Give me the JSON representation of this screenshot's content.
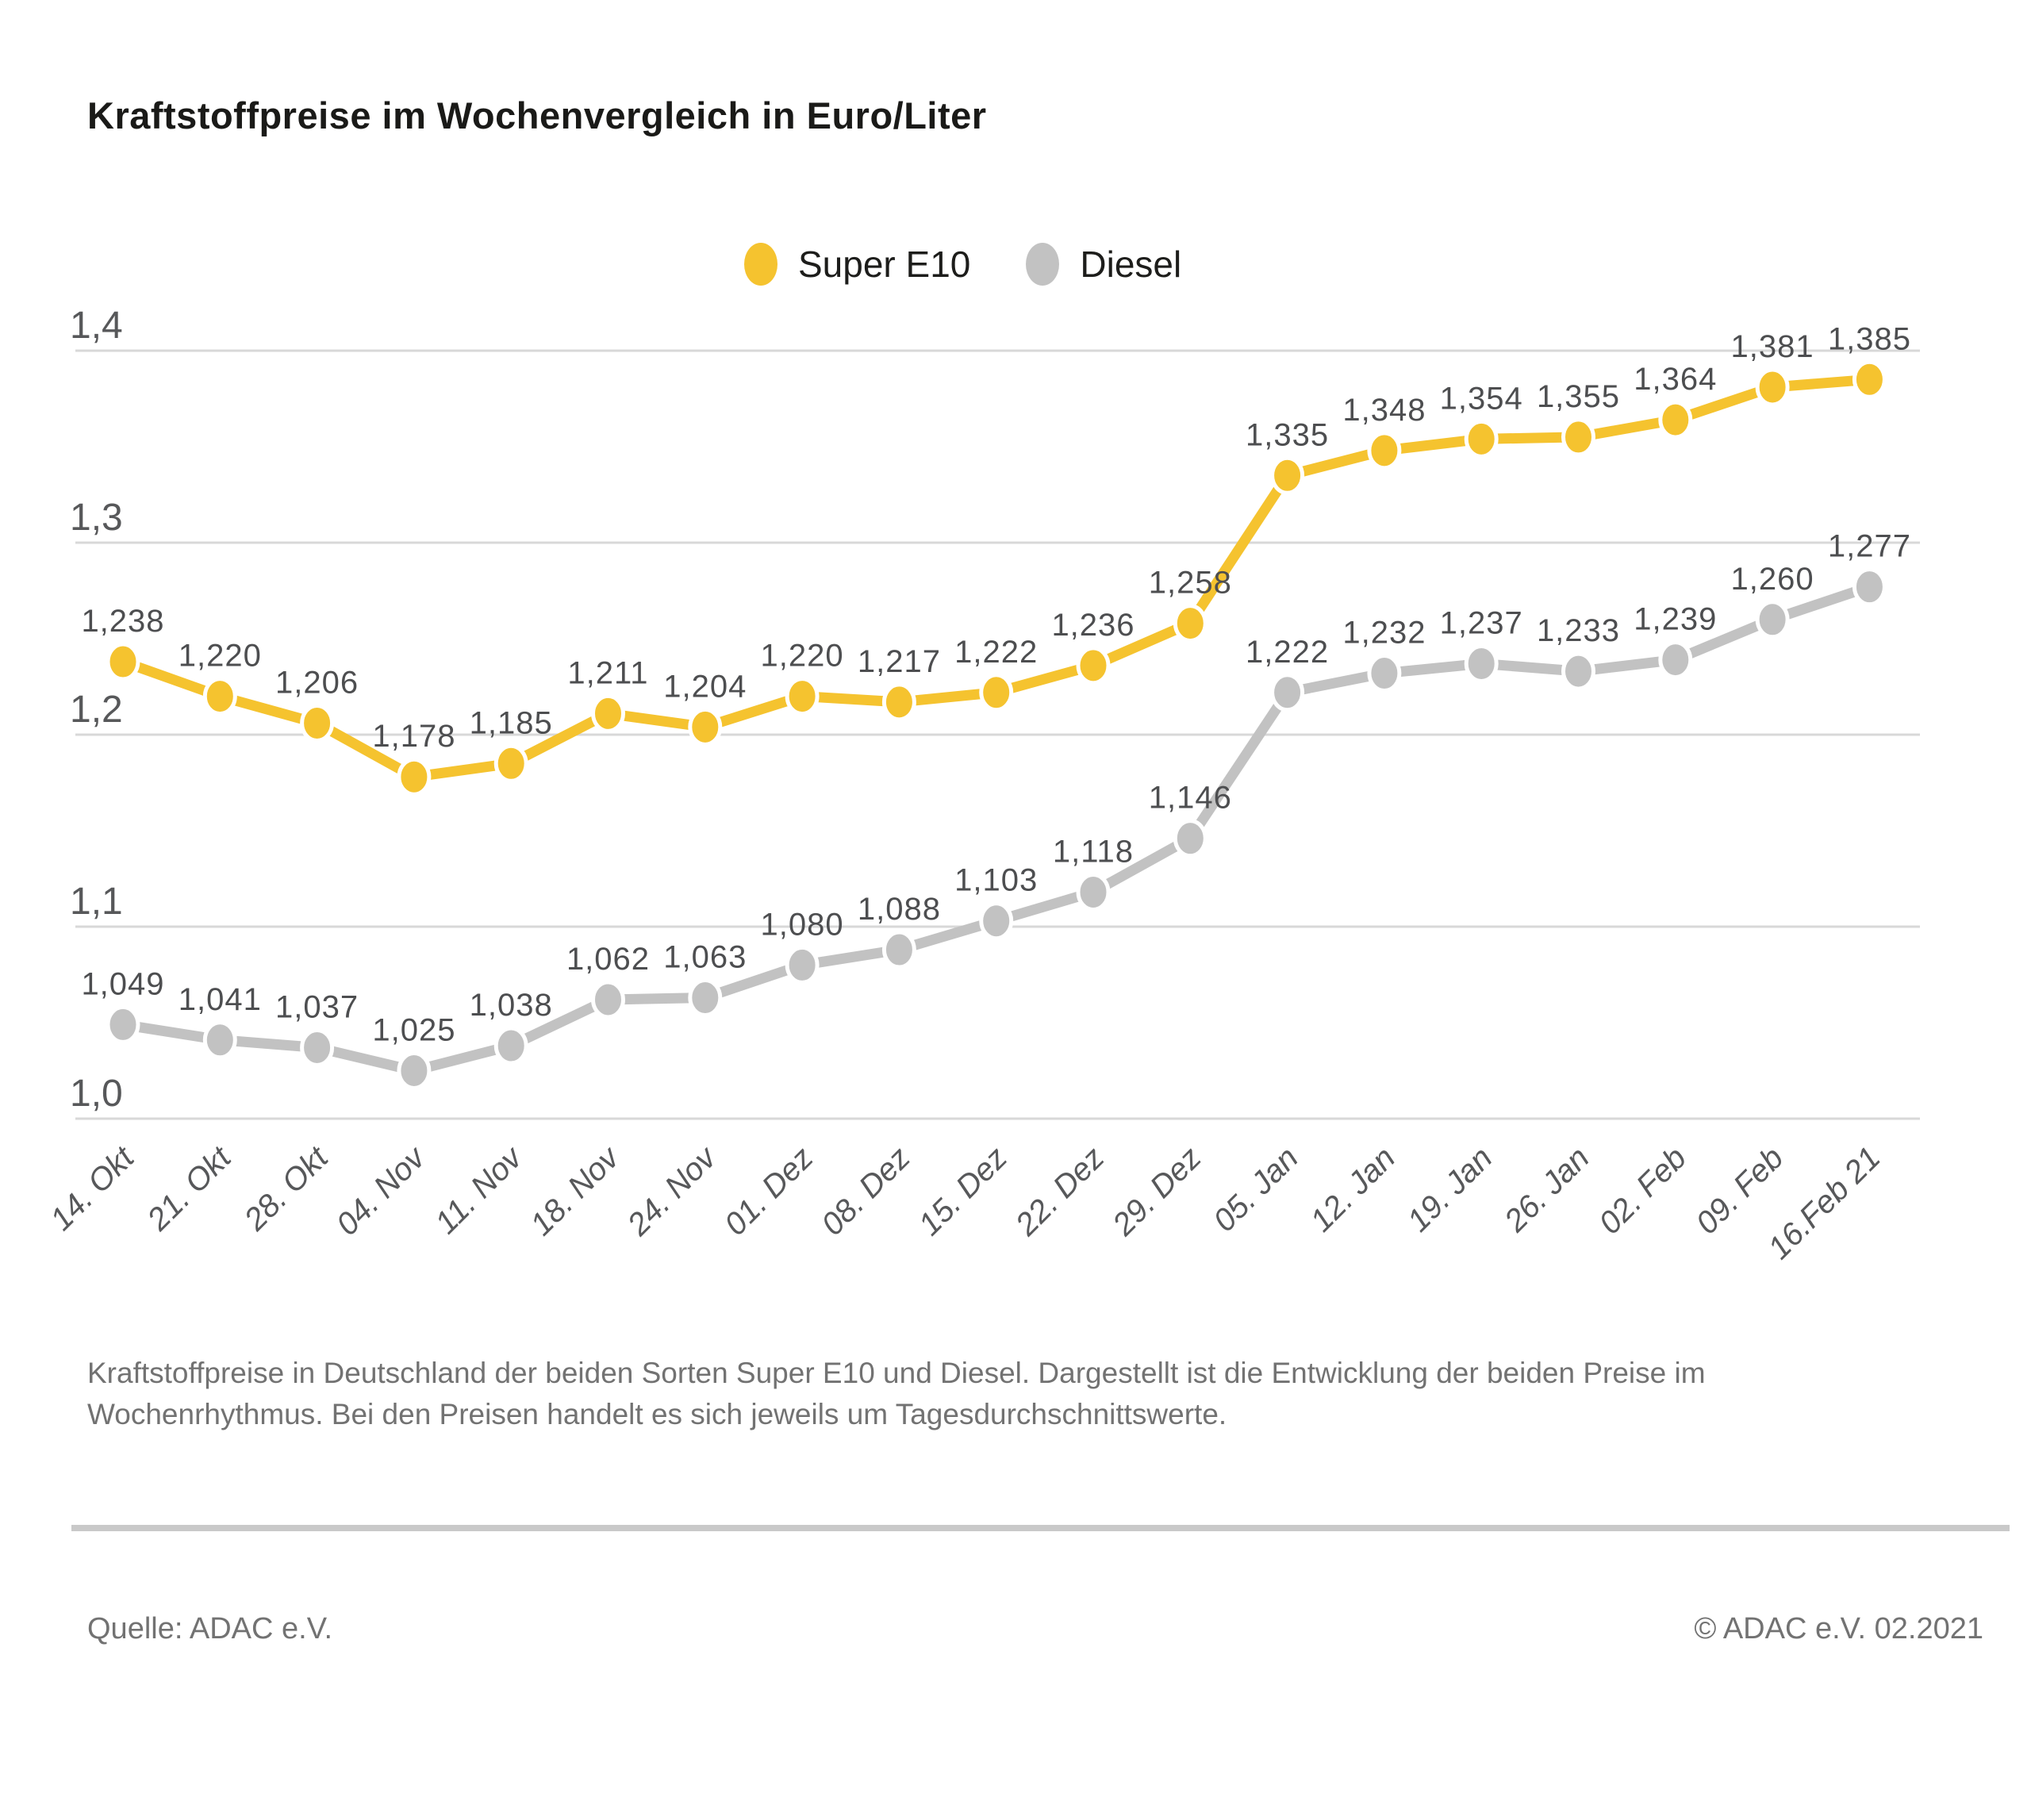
{
  "title": "Kraftstoffpreise im Wochenvergleich in Euro/Liter",
  "caption": {
    "line1": "Kraftstoffpreise in Deutschland der beiden Sorten Super E10 und Diesel. Dargestellt ist die Entwicklung der beiden Preise im",
    "line2": "Wochenrhythmus. Bei den Preisen handelt es sich jeweils um Tagesdurchschnittswerte."
  },
  "footer": {
    "source": "Quelle: ADAC e.V.",
    "copyright": "© ADAC e.V. 02.2021"
  },
  "chart_data": {
    "type": "line",
    "title": "Kraftstoffpreise im Wochenvergleich in Euro/Liter",
    "ylabel": "Euro/Liter",
    "xlabel": "",
    "categories": [
      "14. Okt",
      "21. Okt",
      "28. Okt",
      "04. Nov",
      "11. Nov",
      "18. Nov",
      "24. Nov",
      "01. Dez",
      "08. Dez",
      "15. Dez",
      "22. Dez",
      "29. Dez",
      "05. Jan",
      "12. Jan",
      "19. Jan",
      "26. Jan",
      "02. Feb",
      "09. Feb",
      "16.Feb 21"
    ],
    "series": [
      {
        "name": "Super E10",
        "color": "#f5c32f",
        "values": [
          1.238,
          1.22,
          1.206,
          1.178,
          1.185,
          1.211,
          1.204,
          1.22,
          1.217,
          1.222,
          1.236,
          1.258,
          1.335,
          1.348,
          1.354,
          1.355,
          1.364,
          1.381,
          1.385
        ]
      },
      {
        "name": "Diesel",
        "color": "#c2c2c2",
        "values": [
          1.049,
          1.041,
          1.037,
          1.025,
          1.038,
          1.062,
          1.063,
          1.08,
          1.088,
          1.103,
          1.118,
          1.146,
          1.222,
          1.232,
          1.237,
          1.233,
          1.239,
          1.26,
          1.277
        ]
      }
    ],
    "ylim": [
      1.0,
      1.4
    ],
    "yticks": [
      1.0,
      1.1,
      1.2,
      1.3,
      1.4
    ],
    "grid": true,
    "legend_position": "top-center",
    "value_labels": true,
    "decimal_separator": ","
  },
  "colors": {
    "super_e10": "#f5c32f",
    "diesel": "#c2c2c2",
    "gridline": "#d8d8d8",
    "tick_text": "#57585a",
    "value_label_text": "#4d4e50",
    "divider": "#c9c9c9"
  }
}
